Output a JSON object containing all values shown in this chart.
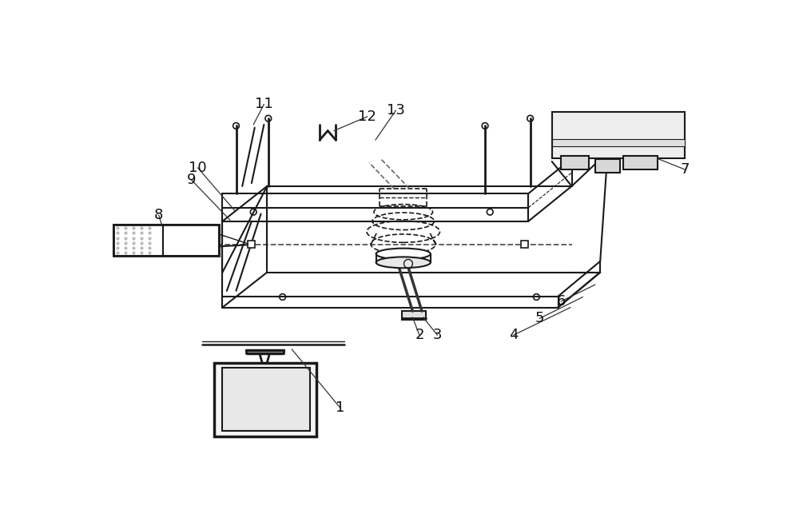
{
  "bg_color": "#ffffff",
  "lc": "#1a1a1a",
  "lw_main": 1.5,
  "lw_thick": 2.0,
  "lw_thin": 1.0,
  "label_fontsize": 13,
  "label_color": "#111111"
}
